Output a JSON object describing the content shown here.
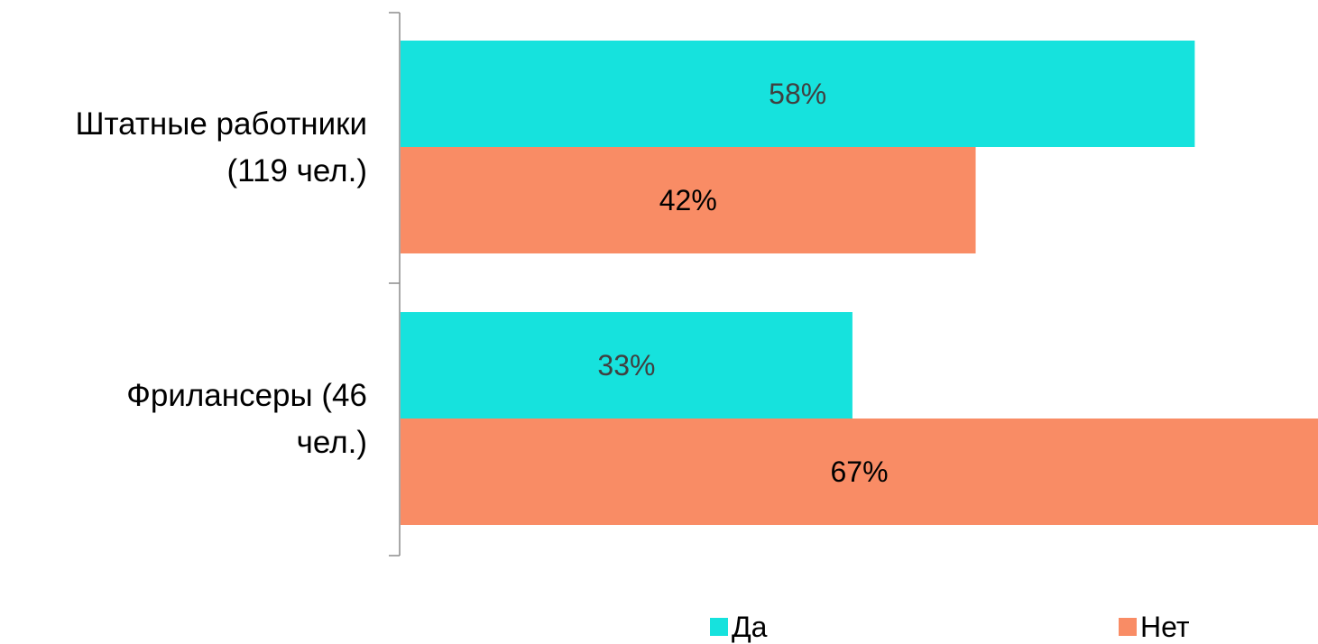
{
  "chart_data": {
    "type": "bar",
    "orientation": "horizontal",
    "categories": [
      "Штатные работники\n(119 чел.)",
      "Фрилансеры (46\nчел.)"
    ],
    "series": [
      {
        "name": "Да",
        "values": [
          58,
          33
        ],
        "labels": [
          "58%",
          "33%"
        ],
        "color": "#16e2dd",
        "label_color": "#404040"
      },
      {
        "name": "Нет",
        "values": [
          42,
          67
        ],
        "labels": [
          "42%",
          "67%"
        ],
        "color": "#f98c65",
        "label_color": "#000000"
      }
    ],
    "xlim": [
      0,
      67
    ],
    "grid": false,
    "legend": "bottom",
    "axis_color": "#8c8c8c"
  }
}
